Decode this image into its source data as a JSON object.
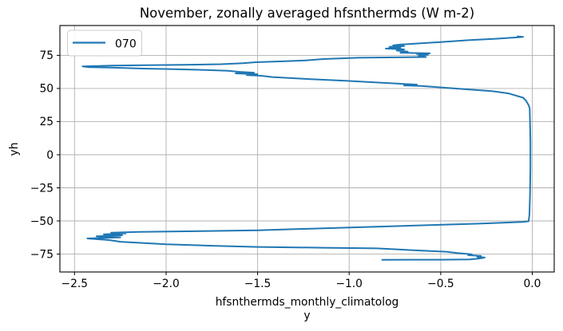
{
  "title": "November, zonally averaged hfsnthermds (W m-2)",
  "legend": {
    "entries": [
      {
        "label": "070",
        "color": "#1f77b4"
      }
    ]
  },
  "x_axis": {
    "label_line1": "hfsnthermds_monthly_climatolog",
    "label_line2": "y",
    "tick_labels": [
      "−2.5",
      "−2.0",
      "−1.5",
      "−1.0",
      "−0.5",
      "0.0"
    ]
  },
  "y_axis": {
    "label": "yh",
    "tick_labels": [
      "−75",
      "−50",
      "−25",
      "0",
      "25",
      "50",
      "75"
    ]
  },
  "chart_data": {
    "type": "line",
    "title": "November, zonally averaged hfsnthermds (W m-2)",
    "xlabel": "hfsnthermds_monthly_climatology",
    "ylabel": "yh",
    "point_format": [
      "hfsnthermds_monthly_climatology (W m-2)",
      "yh (latitude)"
    ],
    "xlim": [
      -2.58,
      0.12
    ],
    "ylim": [
      -88.5,
      97.5
    ],
    "xticks": [
      -2.5,
      -2.0,
      -1.5,
      -1.0,
      -0.5,
      0.0
    ],
    "yticks": [
      -75,
      -50,
      -25,
      0,
      25,
      50,
      75
    ],
    "grid": true,
    "grid_color": "#b0b0b0",
    "legend_position": "upper left",
    "series": [
      {
        "name": "070",
        "color": "#1f77b4",
        "points": [
          [
            -0.82,
            -79.3
          ],
          [
            -0.5,
            -79.2
          ],
          [
            -0.34,
            -79.0
          ],
          [
            -0.29,
            -78.3
          ],
          [
            -0.26,
            -77.6
          ],
          [
            -0.3,
            -77.1
          ],
          [
            -0.28,
            -76.4
          ],
          [
            -0.35,
            -75.8
          ],
          [
            -0.33,
            -75.2
          ],
          [
            -0.41,
            -74.2
          ],
          [
            -0.47,
            -73.2
          ],
          [
            -0.6,
            -72.4
          ],
          [
            -0.85,
            -70.7
          ],
          [
            -1.14,
            -70.2
          ],
          [
            -1.5,
            -69.6
          ],
          [
            -1.75,
            -68.7
          ],
          [
            -2.0,
            -67.6
          ],
          [
            -2.25,
            -65.7
          ],
          [
            -2.31,
            -64.4
          ],
          [
            -2.43,
            -63.2
          ],
          [
            -2.25,
            -62.4
          ],
          [
            -2.38,
            -61.6
          ],
          [
            -2.24,
            -60.8
          ],
          [
            -2.34,
            -60.1
          ],
          [
            -2.22,
            -59.4
          ],
          [
            -2.3,
            -58.8
          ],
          [
            -2.15,
            -58.2
          ],
          [
            -1.8,
            -57.6
          ],
          [
            -1.5,
            -57.1
          ],
          [
            -1.14,
            -55.5
          ],
          [
            -0.6,
            -53.3
          ],
          [
            -0.29,
            -52.0
          ],
          [
            -0.05,
            -50.7
          ],
          [
            -0.02,
            -50.2
          ],
          [
            -0.015,
            -45.0
          ],
          [
            -0.012,
            -30.0
          ],
          [
            -0.01,
            -10.0
          ],
          [
            -0.01,
            10.0
          ],
          [
            -0.012,
            25.0
          ],
          [
            -0.014,
            35.0
          ],
          [
            -0.02,
            37.5
          ],
          [
            -0.035,
            41.0
          ],
          [
            -0.05,
            43.0
          ],
          [
            -0.13,
            46.3
          ],
          [
            -0.22,
            48.0
          ],
          [
            -0.35,
            49.3
          ],
          [
            -0.6,
            51.8
          ],
          [
            -0.7,
            52.3
          ],
          [
            -0.63,
            52.9
          ],
          [
            -0.7,
            53.4
          ],
          [
            -1.02,
            55.8
          ],
          [
            -1.25,
            57.3
          ],
          [
            -1.42,
            58.6
          ],
          [
            -1.48,
            59.6
          ],
          [
            -1.56,
            60.1
          ],
          [
            -1.5,
            60.7
          ],
          [
            -1.62,
            61.4
          ],
          [
            -1.52,
            61.9
          ],
          [
            -1.6,
            62.5
          ],
          [
            -1.66,
            63.4
          ],
          [
            -1.82,
            64.1
          ],
          [
            -2.0,
            64.7
          ],
          [
            -2.12,
            65.0
          ],
          [
            -2.3,
            65.7
          ],
          [
            -2.42,
            66.1
          ],
          [
            -2.456,
            66.7
          ],
          [
            -2.3,
            67.2
          ],
          [
            -2.12,
            67.6
          ],
          [
            -1.9,
            67.9
          ],
          [
            -1.7,
            68.3
          ],
          [
            -1.58,
            69.0
          ],
          [
            -1.51,
            69.8
          ],
          [
            -1.38,
            70.4
          ],
          [
            -1.25,
            71.1
          ],
          [
            -1.14,
            72.2
          ],
          [
            -0.95,
            73.2
          ],
          [
            -0.8,
            73.4
          ],
          [
            -0.58,
            73.7
          ],
          [
            -0.62,
            74.6
          ],
          [
            -0.57,
            75.4
          ],
          [
            -0.63,
            76.0
          ],
          [
            -0.56,
            76.5
          ],
          [
            -0.72,
            77.0
          ],
          [
            -0.68,
            77.8
          ],
          [
            -0.74,
            78.6
          ],
          [
            -0.7,
            79.5
          ],
          [
            -0.8,
            80.1
          ],
          [
            -0.72,
            80.7
          ],
          [
            -0.78,
            81.4
          ],
          [
            -0.7,
            82.0
          ],
          [
            -0.76,
            82.5
          ],
          [
            -0.72,
            83.1
          ],
          [
            -0.6,
            84.2
          ],
          [
            -0.5,
            85.0
          ],
          [
            -0.35,
            86.4
          ],
          [
            -0.2,
            87.5
          ],
          [
            -0.1,
            88.4
          ],
          [
            -0.05,
            88.9
          ],
          [
            -0.08,
            89.3
          ]
        ]
      }
    ]
  }
}
